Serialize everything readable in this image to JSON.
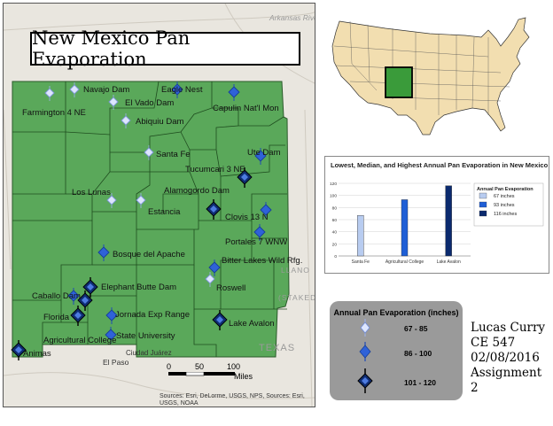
{
  "title": "New Mexico Pan Evaporation",
  "map_labels": {
    "river": "Arkansas River",
    "llano": "LLANO",
    "staked": "(STAKED P",
    "texas": "TEXAS",
    "el_paso": "El Paso",
    "ciudad_juarez": "Ciudad Juárez"
  },
  "stations": [
    {
      "name": "Navajo Dam",
      "class": "67 - 85"
    },
    {
      "name": "Eagle Nest",
      "class": "86 - 100"
    },
    {
      "name": "El Vado Dam",
      "class": "67 - 85"
    },
    {
      "name": "Farmington 4 NE",
      "class": "67 - 85"
    },
    {
      "name": "Capulin Nat'l Mon",
      "class": "86 - 100"
    },
    {
      "name": "Abiquiu Dam",
      "class": "67 - 85"
    },
    {
      "name": "Santa Fe",
      "class": "67 - 85"
    },
    {
      "name": "Ute Dam",
      "class": "86 - 100"
    },
    {
      "name": "Tucumcari 3 NE",
      "class": "101 - 120"
    },
    {
      "name": "Alamogordo Dam",
      "class": "101 - 120"
    },
    {
      "name": "Los Lunas",
      "class": "67 - 85"
    },
    {
      "name": "Estancia",
      "class": "67 - 85"
    },
    {
      "name": "Clovis 13 N",
      "class": "86 - 100"
    },
    {
      "name": "Portales 7 WNW",
      "class": "86 - 100"
    },
    {
      "name": "Bosque del Apache",
      "class": "86 - 100"
    },
    {
      "name": "Bitter Lakes Wild Rfg.",
      "class": "86 - 100"
    },
    {
      "name": "Roswell",
      "class": "67 - 85"
    },
    {
      "name": "Elephant Butte Dam",
      "class": "101 - 120"
    },
    {
      "name": "Caballo Dam",
      "class": "101 - 120"
    },
    {
      "name": "Jornada Exp Range",
      "class": "86 - 100"
    },
    {
      "name": "Florida",
      "class": "101 - 120"
    },
    {
      "name": "State University",
      "class": "86 - 100"
    },
    {
      "name": "Lake Avalon",
      "class": "101 - 120"
    },
    {
      "name": "Agricultural College",
      "class": "86 - 100"
    },
    {
      "name": "Animas",
      "class": "101 - 120"
    }
  ],
  "scale_bar": {
    "ticks": [
      "0",
      "50",
      "100"
    ],
    "unit": "Miles"
  },
  "sources": "Sources: Esri, DeLorme, USGS, NPS, Sources: Esri, USGS, NOAA",
  "chart_data": {
    "type": "bar",
    "title": "Lowest, Median, and Highest Annual Pan Evaporation in New Mexico",
    "categories": [
      "Santa Fe",
      "Agricultural College",
      "Lake Avalon"
    ],
    "values": [
      67,
      93,
      116
    ],
    "ylim": [
      0,
      120
    ],
    "yticks": [
      "0",
      "20",
      "40",
      "60",
      "80",
      "100",
      "120"
    ],
    "grid": true,
    "legend": {
      "title": "Annual Pan Evaporation",
      "position": "right",
      "entries": [
        "67 inches",
        "93 inches",
        "116 inches"
      ]
    },
    "colors": [
      "#b8ccf0",
      "#1f5fd6",
      "#0b2a6e"
    ]
  },
  "legend": {
    "title": "Annual Pan Evaporation (inches)",
    "classes": [
      {
        "label": "67 - 85",
        "color": "#dde6ff"
      },
      {
        "label": "86 - 100",
        "color": "#2f62d8"
      },
      {
        "label": "101 - 120",
        "color": "#0e2c72"
      }
    ]
  },
  "author": {
    "name": "Lucas Curry",
    "course": "CE 547",
    "date": "02/08/2016",
    "assignment": "Assignment 2"
  },
  "colors": {
    "state_fill": "#5aa85a",
    "county_line": "#1f4d1f",
    "basemap": "#e9e6df"
  }
}
